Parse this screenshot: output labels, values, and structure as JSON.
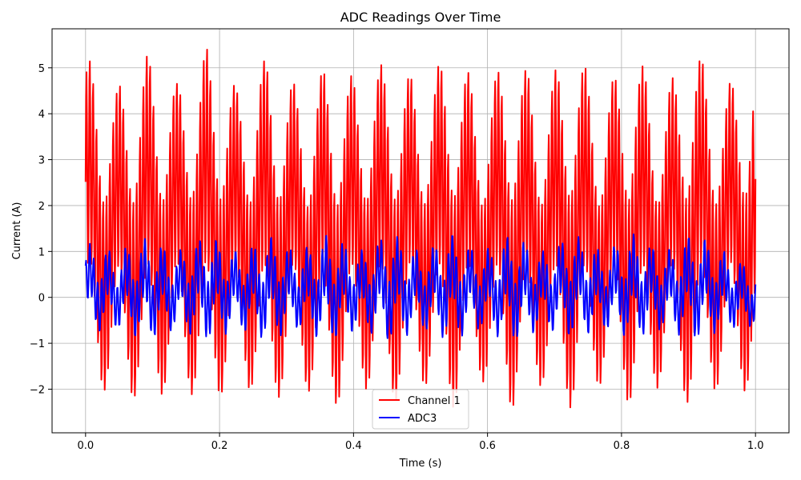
{
  "chart_data": {
    "type": "line",
    "title": "ADC Readings Over Time",
    "xlabel": "Time (s)",
    "ylabel": "Current (A)",
    "xlim": [
      -0.05,
      1.05
    ],
    "ylim": [
      -2.95,
      5.85
    ],
    "x_ticks": [
      0.0,
      0.2,
      0.4,
      0.6,
      0.8,
      1.0
    ],
    "x_tick_labels": [
      "0.0",
      "0.2",
      "0.4",
      "0.6",
      "0.8",
      "1.0"
    ],
    "y_ticks": [
      -2,
      -1,
      0,
      1,
      2,
      3,
      4,
      5
    ],
    "y_tick_labels": [
      "−2",
      "−1",
      "0",
      "1",
      "2",
      "3",
      "4",
      "5"
    ],
    "grid": true,
    "legend_position": "bottom-center",
    "series": [
      {
        "name": "Channel 1",
        "color": "#ff0000",
        "x_range": [
          0.0,
          1.0
        ],
        "center": 1.5,
        "envelope_max": [
          5.3,
          4.6,
          5.35,
          4.7,
          5.5,
          4.6,
          5.3,
          4.6,
          5.1,
          4.8,
          5.25,
          4.7,
          5.4,
          4.6,
          5.3,
          4.7,
          5.4,
          4.6,
          5.3,
          4.6,
          5.45,
          4.6,
          5.4
        ],
        "envelope_min": [
          -2.2,
          -2.0,
          -2.45,
          -1.9,
          -2.45,
          -1.85,
          -2.4,
          -1.9,
          -2.55,
          -1.95,
          -2.4,
          -1.9,
          -2.5,
          -1.85,
          -2.5,
          -1.95,
          -2.5,
          -1.9,
          -2.45,
          -1.9,
          -2.5,
          -1.9,
          -2.2
        ]
      },
      {
        "name": "ADC3",
        "color": "#0000ff",
        "x_range": [
          0.0,
          1.0
        ],
        "center": 0.25,
        "envelope_max": [
          1.2,
          1.0,
          1.3,
          1.0,
          1.4,
          1.0,
          1.35,
          1.0,
          1.4,
          1.0,
          1.45,
          1.0,
          1.4,
          1.0,
          1.4,
          1.0,
          1.4,
          1.0,
          1.4,
          1.0,
          1.45,
          1.0,
          0.6
        ],
        "envelope_min": [
          -0.8,
          -0.7,
          -0.95,
          -0.7,
          -0.95,
          -0.7,
          -0.95,
          -0.7,
          -1.0,
          -0.7,
          -1.0,
          -0.7,
          -0.95,
          -0.7,
          -1.0,
          -0.7,
          -0.9,
          -0.7,
          -0.9,
          -0.7,
          -0.95,
          -0.7,
          -0.65
        ]
      }
    ]
  }
}
